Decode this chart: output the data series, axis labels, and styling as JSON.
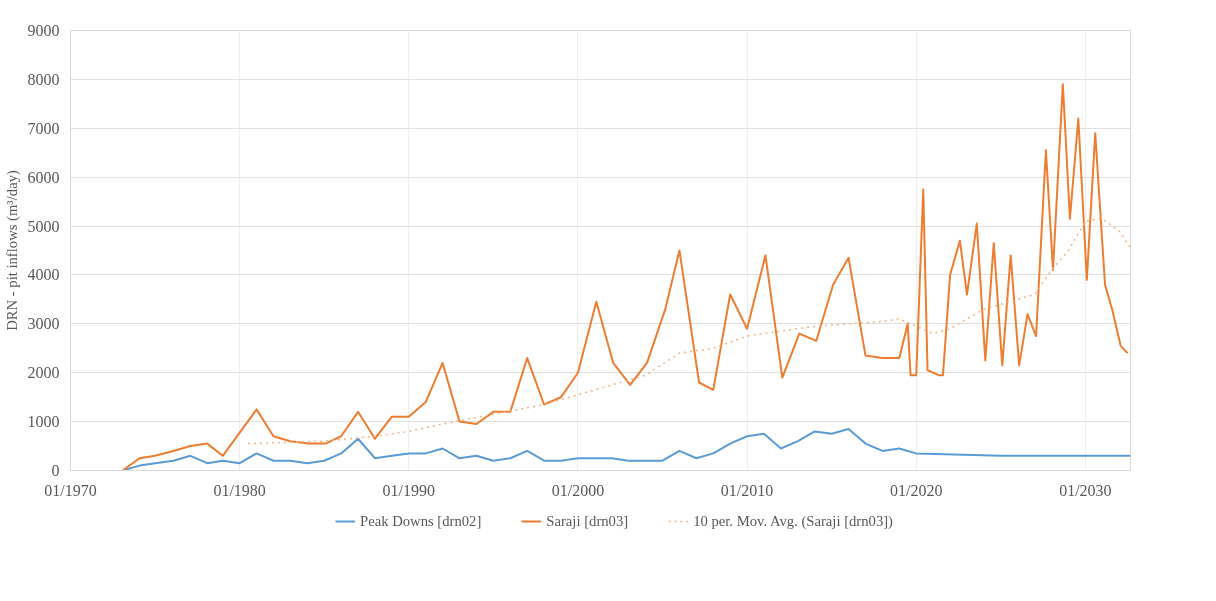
{
  "chart_data": {
    "type": "line",
    "ylabel": "DRN - pit inflows (m³/day)",
    "xlim": [
      "1970-01",
      "2032-09"
    ],
    "ylim": [
      0,
      9000
    ],
    "xticks": [
      {
        "value": "1970-01",
        "label": "01/1970"
      },
      {
        "value": "1980-01",
        "label": "01/1980"
      },
      {
        "value": "1990-01",
        "label": "01/1990"
      },
      {
        "value": "2000-01",
        "label": "01/2000"
      },
      {
        "value": "2010-01",
        "label": "01/2010"
      },
      {
        "value": "2020-01",
        "label": "01/2020"
      },
      {
        "value": "2030-01",
        "label": "01/2030"
      }
    ],
    "yticks": [
      0,
      1000,
      2000,
      3000,
      4000,
      5000,
      6000,
      7000,
      8000,
      9000
    ],
    "grid": true,
    "legend": "bottom",
    "marker": "none",
    "series": [
      {
        "name": "Peak Downs [drn02]",
        "color": "#5b9bd5",
        "line_style": "solid",
        "x": [
          "1973-02",
          "1974-02",
          "1975-01",
          "1976-02",
          "1977-02",
          "1978-02",
          "1979-01",
          "1980-01",
          "1981-01",
          "1982-01",
          "1983-01",
          "1984-01",
          "1985-01",
          "1986-01",
          "1987-01",
          "1988-01",
          "1989-01",
          "1990-01",
          "1991-01",
          "1992-01",
          "1993-01",
          "1994-01",
          "1995-01",
          "1996-01",
          "1997-01",
          "1998-01",
          "1999-01",
          "2000-01",
          "2001-01",
          "2002-01",
          "2003-01",
          "2004-01",
          "2005-01",
          "2006-01",
          "2007-01",
          "2008-01",
          "2009-01",
          "2010-01",
          "2011-01",
          "2012-01",
          "2013-01",
          "2014-01",
          "2015-01",
          "2016-01",
          "2017-01",
          "2018-01",
          "2019-01",
          "2019-07",
          "2020-01",
          "2025-01",
          "2030-01",
          "2032-09"
        ],
        "values": [
          0,
          100,
          150,
          200,
          300,
          150,
          200,
          150,
          350,
          200,
          200,
          150,
          200,
          350,
          650,
          250,
          300,
          350,
          350,
          450,
          250,
          300,
          200,
          250,
          400,
          200,
          200,
          250,
          250,
          250,
          200,
          200,
          200,
          400,
          250,
          350,
          550,
          700,
          750,
          450,
          600,
          800,
          750,
          850,
          550,
          400,
          450,
          400,
          350,
          300,
          300,
          300
        ]
      },
      {
        "name": "Saraji [drn03]",
        "color": "#ed7d31",
        "line_style": "solid",
        "x": [
          "1973-02",
          "1974-02",
          "1975-01",
          "1976-02",
          "1977-02",
          "1978-02",
          "1979-01",
          "1981-01",
          "1982-01",
          "1983-01",
          "1984-02",
          "1985-02",
          "1986-01",
          "1987-01",
          "1988-01",
          "1989-01",
          "1990-01",
          "1991-01",
          "1992-01",
          "1993-01",
          "1994-01",
          "1995-01",
          "1996-01",
          "1997-01",
          "1998-01",
          "1999-01",
          "2000-01",
          "2001-02",
          "2002-02",
          "2003-02",
          "2004-02",
          "2005-03",
          "2006-01",
          "2007-03",
          "2008-01",
          "2009-01",
          "2010-01",
          "2011-02",
          "2012-02",
          "2013-02",
          "2014-02",
          "2015-02",
          "2016-01",
          "2017-01",
          "2018-01",
          "2019-01",
          "2019-07",
          "2019-09",
          "2020-01",
          "2020-06",
          "2020-09",
          "2021-05",
          "2021-08",
          "2022-01",
          "2022-08",
          "2023-01",
          "2023-08",
          "2024-02",
          "2024-08",
          "2025-02",
          "2025-08",
          "2026-02",
          "2026-08",
          "2027-02",
          "2027-09",
          "2028-02",
          "2028-09",
          "2029-02",
          "2029-08",
          "2030-02",
          "2030-08",
          "2031-03",
          "2031-08",
          "2032-02",
          "2032-07"
        ],
        "values": [
          0,
          250,
          300,
          400,
          500,
          550,
          300,
          1250,
          700,
          600,
          550,
          550,
          700,
          1200,
          650,
          1100,
          1100,
          1400,
          2200,
          1000,
          950,
          1200,
          1200,
          2300,
          1350,
          1500,
          2000,
          3450,
          2200,
          1750,
          2200,
          3300,
          4500,
          1800,
          1650,
          3600,
          2900,
          4400,
          1900,
          2800,
          2650,
          3800,
          4350,
          2350,
          2300,
          2300,
          3000,
          1950,
          1950,
          5750,
          2050,
          1950,
          1950,
          4000,
          4700,
          3600,
          5050,
          2250,
          4650,
          2150,
          4400,
          2150,
          3200,
          2750,
          6550,
          4100,
          7900,
          5150,
          7200,
          3900,
          6900,
          3800,
          3300,
          2550,
          2400
        ]
      },
      {
        "name": "10 per. Mov. Avg. (Saraji [drn03])",
        "color": "#f4b183",
        "line_style": "dotted",
        "x": [
          "1980-07",
          "1985-01",
          "1988-01",
          "1990-01",
          "1992-01",
          "1995-01",
          "1998-01",
          "2000-01",
          "2002-01",
          "2004-01",
          "2006-01",
          "2008-01",
          "2010-01",
          "2012-01",
          "2014-01",
          "2016-01",
          "2018-01",
          "2019-01",
          "2020-01",
          "2021-01",
          "2022-01",
          "2023-01",
          "2024-01",
          "2026-01",
          "2027-01",
          "2028-01",
          "2029-01",
          "2030-01",
          "2031-01",
          "2032-01",
          "2032-09"
        ],
        "values": [
          550,
          600,
          700,
          800,
          950,
          1150,
          1350,
          1550,
          1750,
          1950,
          2400,
          2500,
          2750,
          2850,
          2950,
          3000,
          3050,
          3100,
          2950,
          2800,
          2900,
          3100,
          3300,
          3500,
          3600,
          4100,
          4500,
          5100,
          5150,
          4900,
          4550
        ]
      }
    ]
  }
}
